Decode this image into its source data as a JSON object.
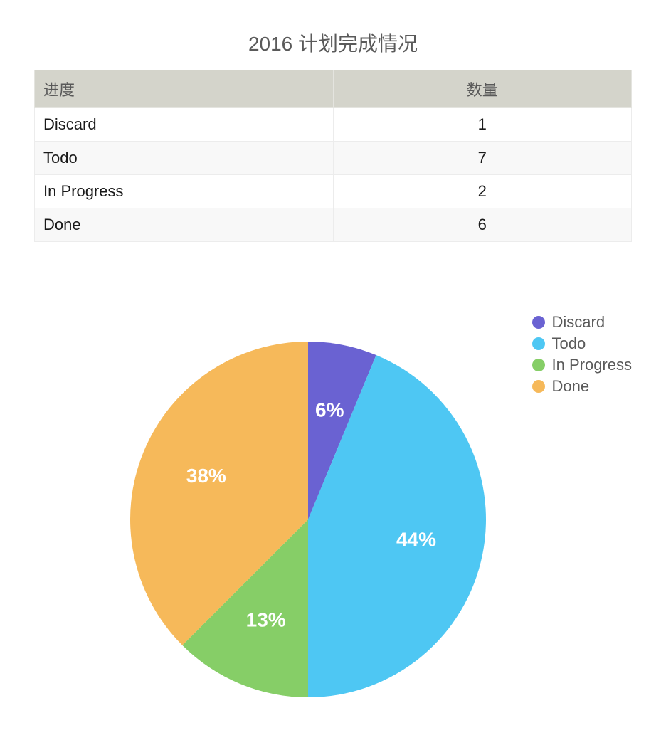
{
  "title": "2016 计划完成情况",
  "table": {
    "columns": {
      "status": "进度",
      "count": "数量"
    },
    "rows": [
      {
        "status": "Discard",
        "count": 1
      },
      {
        "status": "Todo",
        "count": 7
      },
      {
        "status": "In Progress",
        "count": 2
      },
      {
        "status": "Done",
        "count": 6
      }
    ]
  },
  "chart": {
    "type": "pie",
    "radius": 250,
    "start_angle_deg": 0,
    "direction": "clockwise",
    "background_color": "#ffffff",
    "label_font_size": 28,
    "label_font_weight": 600,
    "label_color": "#ffffff",
    "label_radius_factor": 0.62,
    "slices": [
      {
        "name": "Discard",
        "value": 1,
        "percent_label": "6%",
        "color": "#6a62d2"
      },
      {
        "name": "Todo",
        "value": 7,
        "percent_label": "44%",
        "color": "#4ec7f3"
      },
      {
        "name": "In Progress",
        "value": 2,
        "percent_label": "13%",
        "color": "#86ce67"
      },
      {
        "name": "Done",
        "value": 6,
        "percent_label": "38%",
        "color": "#f6b95a"
      }
    ],
    "legend": {
      "position": "top-right",
      "font_size": 22,
      "text_color": "#5a5a5a",
      "dot_radius": 9
    }
  }
}
